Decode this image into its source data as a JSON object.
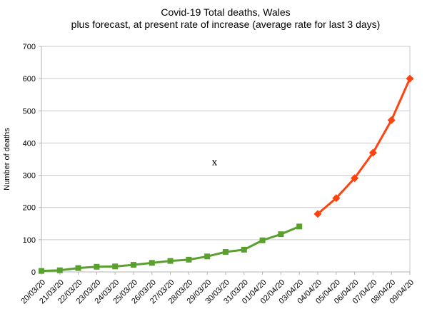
{
  "chart_data": {
    "type": "line",
    "title": "Covid-19 Total deaths, Wales",
    "subtitle": "plus forecast, at present rate of increase (average rate for last 3 days)",
    "ylabel": "Number of deaths",
    "ylim": [
      0,
      700
    ],
    "ytick_step": 100,
    "grid": "horizontal",
    "legend": "none",
    "categories": [
      "20/03/20",
      "21/03/20",
      "22/03/20",
      "23/03/20",
      "24/03/20",
      "25/03/20",
      "26/03/20",
      "27/03/20",
      "28/03/20",
      "29/03/20",
      "30/03/20",
      "31/03/20",
      "01/04/20",
      "02/04/20",
      "03/04/20",
      "04/04/20",
      "05/04/20",
      "06/04/20",
      "07/04/20",
      "08/04/20",
      "09/04/20"
    ],
    "series": [
      {
        "role": "actual",
        "color": "#5AA02F",
        "marker": "square",
        "start_index": 0,
        "values": [
          3,
          5,
          12,
          16,
          17,
          22,
          28,
          34,
          38,
          48,
          62,
          69,
          98,
          117,
          141
        ]
      },
      {
        "role": "forecast",
        "color": "#FF420E",
        "marker": "diamond",
        "start_index": 15,
        "values": [
          180,
          229,
          291,
          370,
          471,
          600
        ]
      }
    ],
    "annotations": [
      {
        "text": "x",
        "category_position": 9.4,
        "value": 340
      }
    ],
    "colors": {
      "gridline": "#c9c9c9",
      "axis": "#b3b3b3",
      "text": "#000000"
    }
  }
}
